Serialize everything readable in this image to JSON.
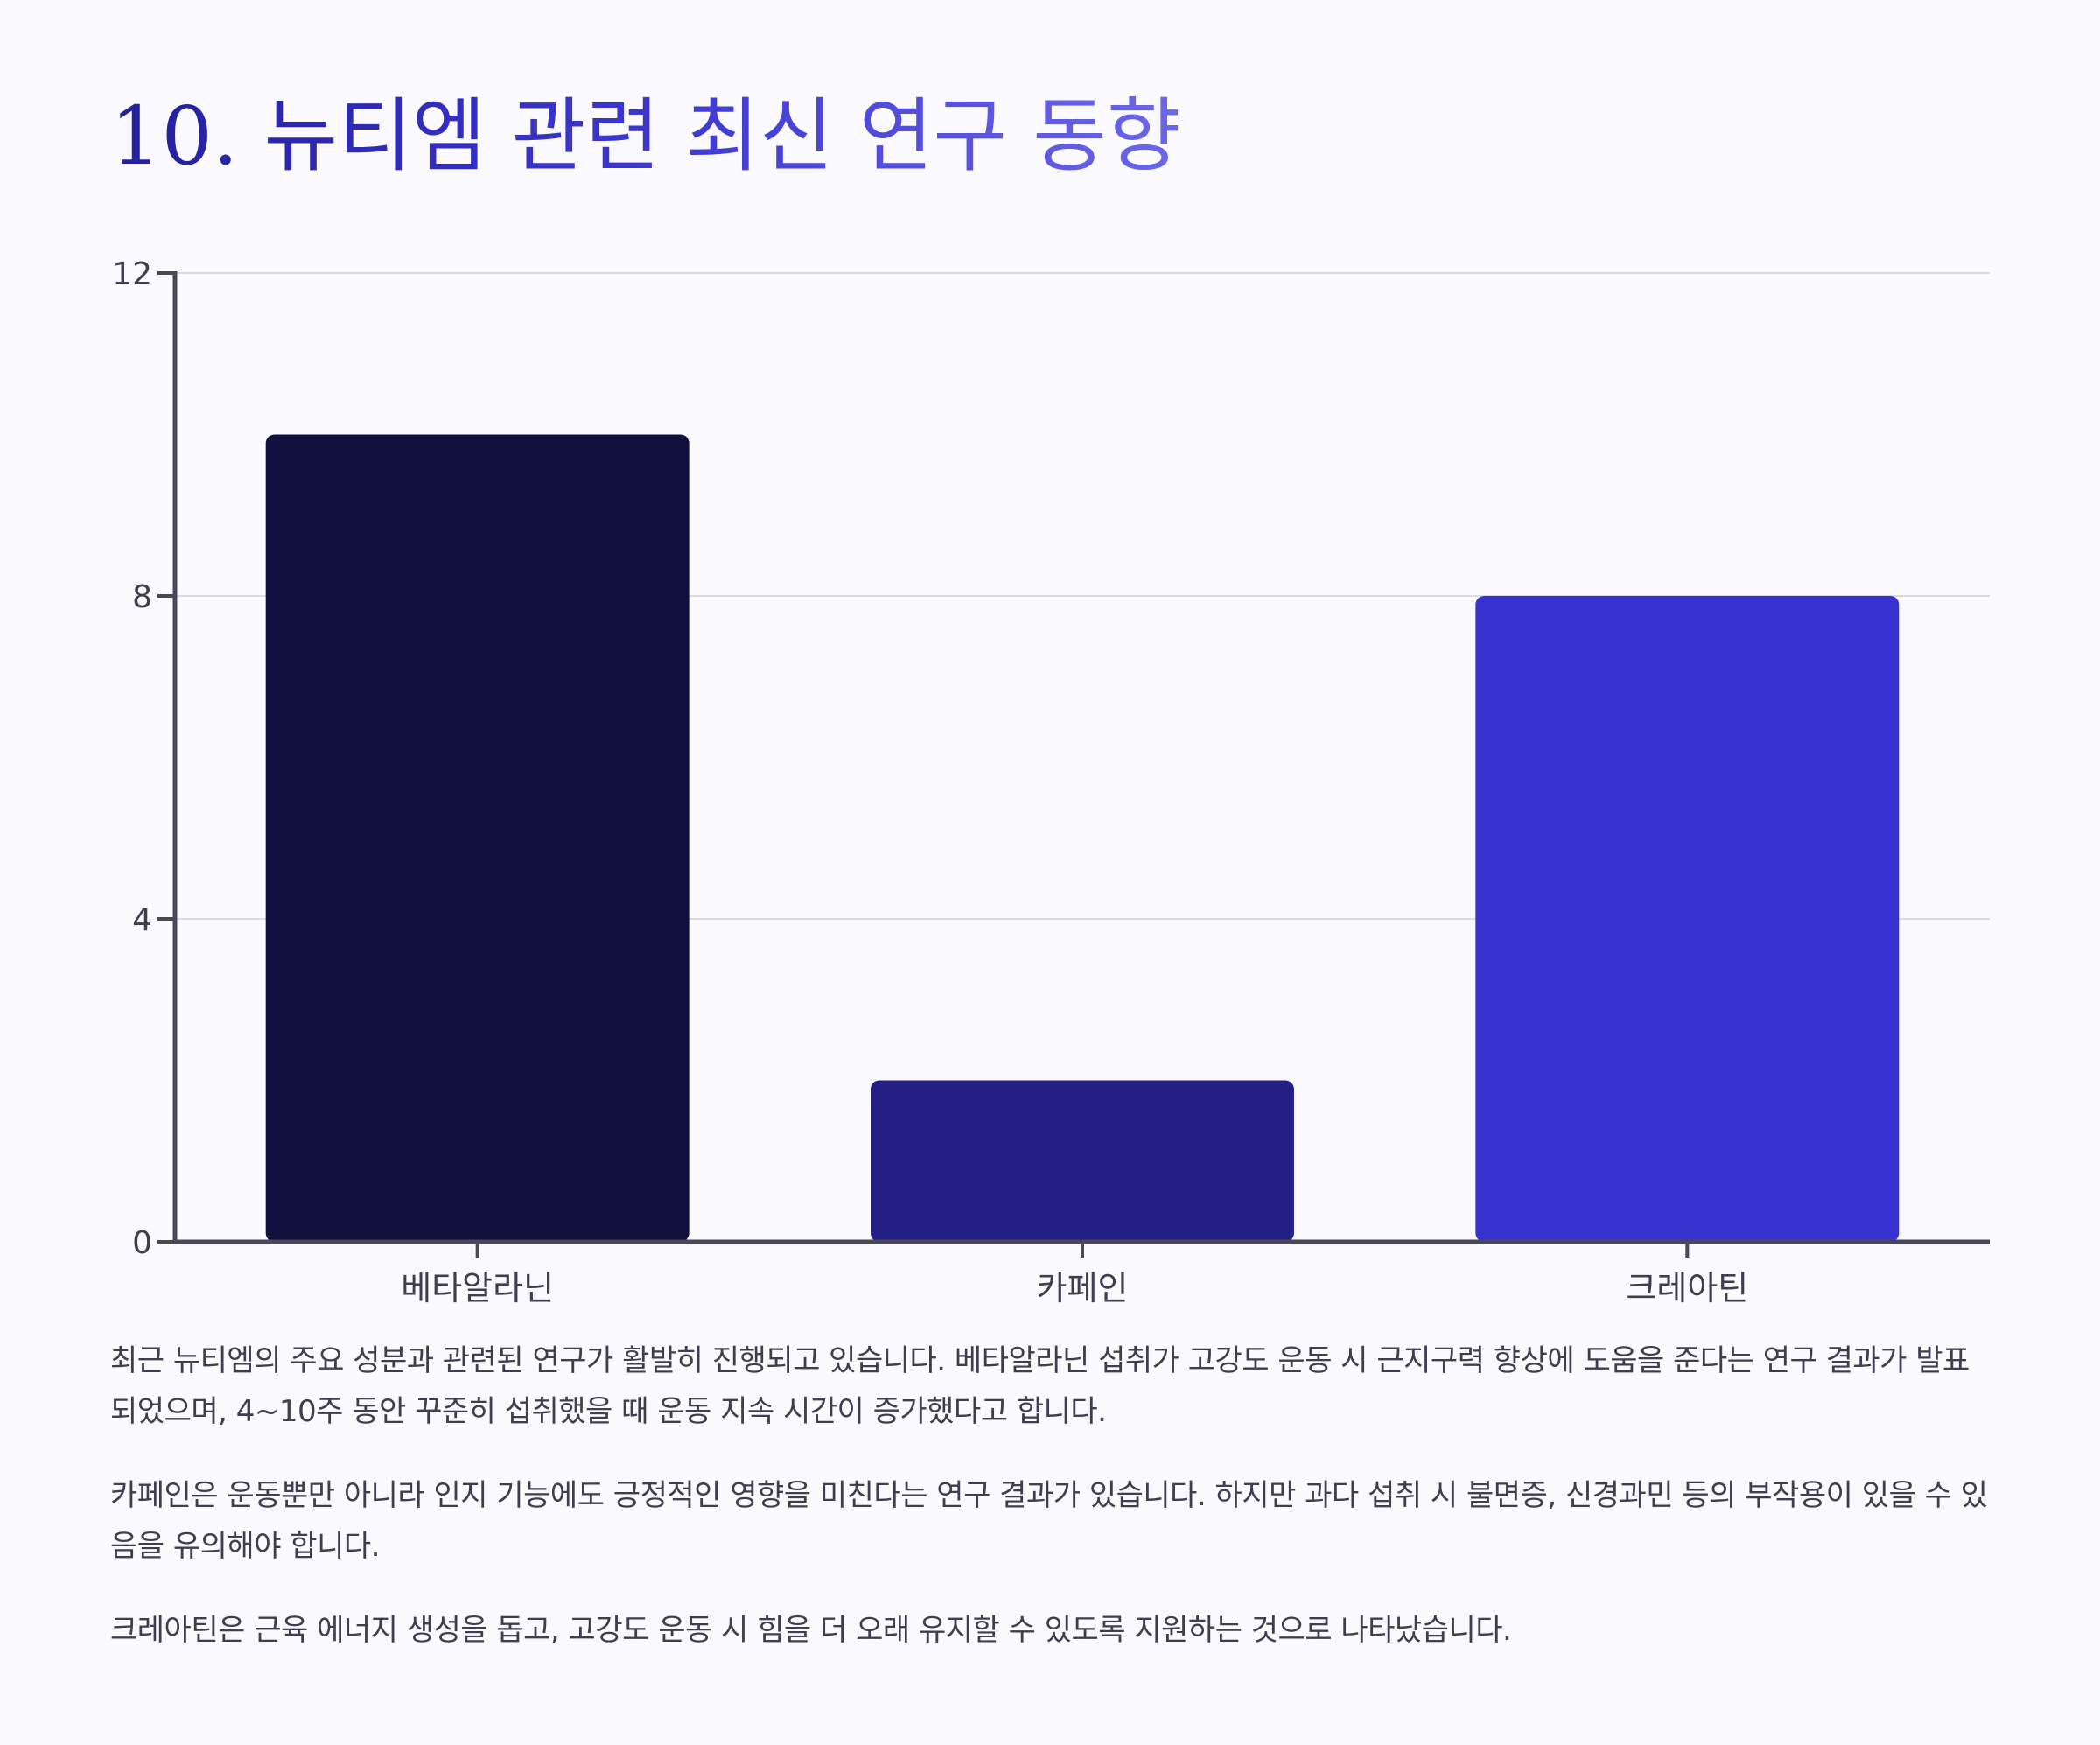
{
  "heading": {
    "title": "10. 뉴티엠 관련 최신 연구 동향"
  },
  "chart_data": {
    "type": "bar",
    "categories": [
      "베타알라닌",
      "카페인",
      "크레아틴"
    ],
    "values": [
      10,
      2,
      8
    ],
    "ylim": [
      0,
      12
    ],
    "yticks": [
      0,
      4,
      8,
      12
    ],
    "grid": true,
    "bar_colors": [
      "#11103d",
      "#231f85",
      "#3732cf"
    ]
  },
  "paragraphs": [
    "최근 뉴티엠의 주요 성분과 관련된 연구가 활발히 진행되고 있습니다. 베타알라닌 섭취가 고강도 운동 시 근지구력 향상에 도움을 준다는 연구 결과가 발표되었으며, 4~10주 동안 꾸준히 섭취했을 때 운동 지속 시간이 증가했다고 합니다.",
    "카페인은 운동뿐만 아니라 인지 기능에도 긍정적인 영향을 미친다는 연구 결과가 있습니다. 하지만 과다 섭취 시 불면증, 신경과민 등의 부작용이 있을 수 있음을 유의해야 합니다.",
    "크레아틴은 근육 에너지 생성을 돕고, 고강도 운동 시 힘을 더 오래 유지할 수 있도록 지원하는 것으로 나타났습니다."
  ]
}
